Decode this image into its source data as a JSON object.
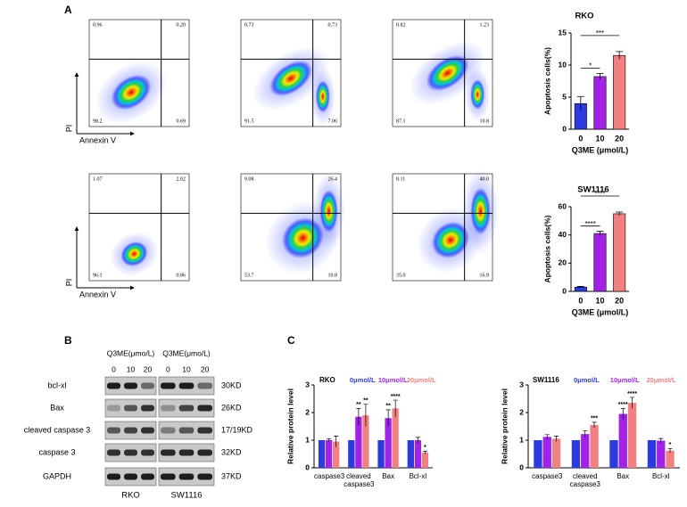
{
  "panel_labels": [
    "A",
    "B",
    "C"
  ],
  "flow_cytometry": {
    "y_label": "PI",
    "x_label": "Annexin V",
    "plots": [
      [
        "0.96",
        "0.20",
        "98.2",
        "0.69"
      ],
      [
        "0.73",
        "0.73",
        "91.5",
        "7.06"
      ],
      [
        "0.82",
        "1.23",
        "87.1",
        "10.8"
      ],
      [
        "1.07",
        "2.02",
        "96.1",
        "0.86"
      ],
      [
        "9.08",
        "26.4",
        "53.7",
        "10.8"
      ],
      [
        "8.11",
        "40.0",
        "35.0",
        "16.9"
      ]
    ]
  },
  "western_blot": {
    "treatment": "Q3ME(μmo/L)",
    "doses": [
      "0",
      "10",
      "20"
    ],
    "cell_lines": [
      "RKO",
      "SW1116"
    ],
    "proteins": [
      "bcl-xl",
      "Bax",
      "cleaved caspase 3",
      "caspase 3",
      "GAPDH"
    ],
    "sizes": [
      "30KD",
      "26KD",
      "17/19KD",
      "32KD",
      "37KD"
    ]
  },
  "chart_data": [
    {
      "type": "bar",
      "title": "RKO",
      "x_label": "Q3ME (μmol/L)",
      "y_label": "Apoptosis cells(%)",
      "categories": [
        "0",
        "10",
        "20"
      ],
      "values": [
        4,
        8.2,
        11.5
      ],
      "errors": [
        1.1,
        0.5,
        0.6
      ],
      "colors": [
        "#2b3be0",
        "#a322e8",
        "#f28080"
      ],
      "significance": [
        "*",
        "***"
      ],
      "ylim": [
        0,
        15
      ],
      "yticks": [
        0,
        5,
        10,
        15
      ]
    },
    {
      "type": "bar",
      "title": "SW1116",
      "x_label": "Q3ME (μmol/L)",
      "y_label": "Apoptosis cells(%)",
      "categories": [
        "0",
        "10",
        "20"
      ],
      "values": [
        3,
        41,
        55
      ],
      "errors": [
        0.5,
        1.5,
        1.2
      ],
      "colors": [
        "#2b3be0",
        "#a322e8",
        "#f28080"
      ],
      "significance": [
        "****",
        "****"
      ],
      "ylim": [
        0,
        60
      ],
      "yticks": [
        0,
        20,
        40,
        60
      ]
    },
    {
      "type": "grouped_bar",
      "title": "RKO",
      "y_label": "Relative protein level",
      "categories": [
        "caspase3",
        "cleaved caspase3",
        "Bax",
        "Bcl-xl"
      ],
      "series": [
        {
          "name": "0μmol/L",
          "color": "#2b3be0",
          "values": [
            1,
            1,
            1,
            1
          ]
        },
        {
          "name": "10μmol/L",
          "color": "#a322e8",
          "values": [
            1.0,
            1.85,
            1.8,
            1.0
          ],
          "errors": [
            0.05,
            0.3,
            0.3,
            0.1
          ],
          "significance": [
            null,
            "**",
            "**",
            null
          ]
        },
        {
          "name": "20μmol/L",
          "color": "#f28080",
          "values": [
            0.95,
            1.9,
            2.15,
            0.55
          ],
          "errors": [
            0.2,
            0.4,
            0.3,
            0.05
          ],
          "significance": [
            null,
            "**",
            "****",
            "*"
          ]
        }
      ],
      "ylim": [
        0,
        3
      ],
      "yticks": [
        0,
        1,
        2,
        3
      ]
    },
    {
      "type": "grouped_bar",
      "title": "SW1116",
      "y_label": "Relative protein level",
      "categories": [
        "caspase3",
        "cleaved caspase3",
        "Bax",
        "Bcl-xl"
      ],
      "series": [
        {
          "name": "0μmol/L",
          "color": "#2b3be0",
          "values": [
            1,
            1,
            1,
            1
          ]
        },
        {
          "name": "10μmol/L",
          "color": "#a322e8",
          "values": [
            1.12,
            1.22,
            1.95,
            0.98
          ],
          "errors": [
            0.08,
            0.12,
            0.2,
            0.08
          ],
          "significance": [
            null,
            null,
            "****",
            null
          ]
        },
        {
          "name": "20μmol/L",
          "color": "#f28080",
          "values": [
            1.05,
            1.55,
            2.35,
            0.62
          ],
          "errors": [
            0.1,
            0.1,
            0.2,
            0.08
          ],
          "significance": [
            null,
            "***",
            "****",
            "*"
          ]
        }
      ],
      "ylim": [
        0,
        3
      ],
      "yticks": [
        0,
        1,
        2,
        3
      ]
    }
  ]
}
